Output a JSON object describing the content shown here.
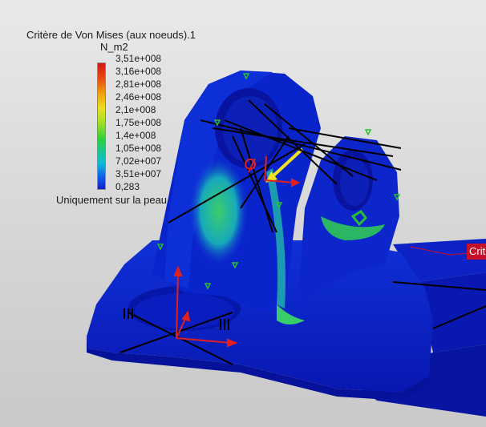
{
  "legend": {
    "title": "Critère de Von Mises (aux noeuds).1",
    "unit": "N_m2",
    "ticks": [
      "3,51e+008",
      "3,16e+008",
      "2,81e+008",
      "2,46e+008",
      "2,1e+008",
      "1,75e+008",
      "1,4e+008",
      "1,05e+008",
      "7,02e+007",
      "3,51e+007",
      "0,283"
    ],
    "note": "Uniquement sur la peau",
    "colors": [
      "#d11818",
      "#f0a010",
      "#e8e020",
      "#2fd03a",
      "#10b8d8",
      "#1020c8"
    ]
  },
  "callout": {
    "label": "Crit"
  },
  "model": {
    "part_color": "#0a1ec8",
    "stress_highlight_color": "#20d060",
    "axis_color": "#e02020",
    "load_arrow_color": "#f0e020"
  }
}
